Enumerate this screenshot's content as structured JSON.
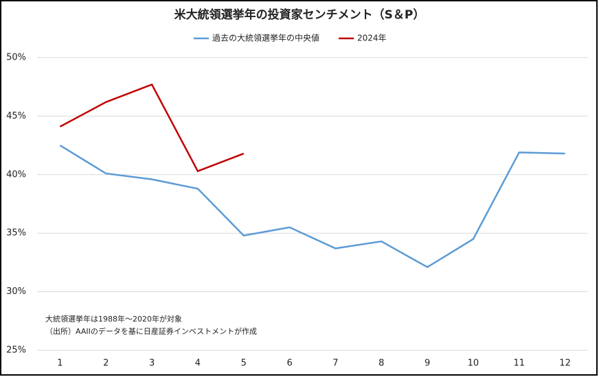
{
  "chart_data": {
    "type": "line",
    "title": "米大統領選挙年の投資家センチメント（S＆P）",
    "categories": [
      1,
      2,
      3,
      4,
      5,
      6,
      7,
      8,
      9,
      10,
      11,
      12
    ],
    "series": [
      {
        "name": "過去の大統領選挙年の中央値",
        "color": "#5b9bd5",
        "values": [
          42.5,
          40.1,
          39.6,
          38.8,
          34.8,
          35.5,
          33.7,
          34.3,
          32.1,
          34.5,
          41.9,
          41.8
        ]
      },
      {
        "name": "2024年",
        "color": "#c00000",
        "values": [
          44.1,
          46.2,
          47.7,
          40.3,
          41.8,
          null,
          null,
          null,
          null,
          null,
          null,
          null
        ]
      }
    ],
    "ylim": [
      25,
      50
    ],
    "yticks": [
      {
        "value": 25,
        "label": "25%"
      },
      {
        "value": 30,
        "label": "30%"
      },
      {
        "value": 35,
        "label": "35%"
      },
      {
        "value": 40,
        "label": "40%"
      },
      {
        "value": 45,
        "label": "45%"
      },
      {
        "value": 50,
        "label": "50%"
      }
    ],
    "grid": true,
    "legend": "top",
    "annotations": [
      "大統領選挙年は1988年～2020年が対象",
      "（出所）AAIIのデータを基に日産証券インベストメントが作成"
    ]
  }
}
